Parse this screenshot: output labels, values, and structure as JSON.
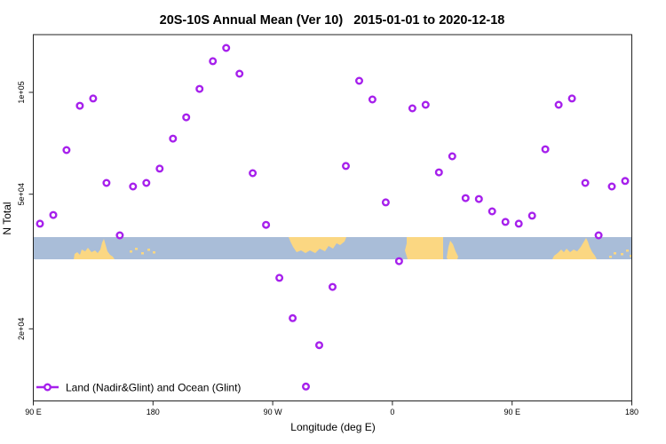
{
  "title": "20S-10S Annual Mean (Ver 10)   2015-01-01 to 2020-12-18",
  "chart_data": {
    "type": "scatter",
    "title": "20S-10S Annual Mean (Ver 10)   2015-01-01 to 2020-12-18",
    "xlabel": "Longitude (deg E)",
    "ylabel": "N Total",
    "y_scale": "log",
    "ylim": [
      11000,
      150000
    ],
    "x_axis": {
      "range_deg_continuous": [
        90,
        540
      ],
      "ticks": [
        {
          "lon": 90,
          "label": "90 E"
        },
        {
          "lon": 180,
          "label": "180"
        },
        {
          "lon": 270,
          "label": "90 W"
        },
        {
          "lon": 360,
          "label": "0"
        },
        {
          "lon": 450,
          "label": "90 E"
        },
        {
          "lon": 540,
          "label": "180"
        }
      ]
    },
    "y_axis": {
      "ticks": [
        {
          "value": 100000,
          "label": "1e+05"
        },
        {
          "value": 50000,
          "label": "5e+04"
        },
        {
          "value": 20000,
          "label": "2e+04"
        }
      ]
    },
    "legend": {
      "label": "Land (Nadir&Glint) and Ocean (Glint)"
    },
    "marker_color": "#A620EC",
    "series": [
      {
        "name": "Land (Nadir&Glint) and Ocean (Glint)",
        "points": [
          [
            95,
            40900
          ],
          [
            105,
            43400
          ],
          [
            115,
            67500
          ],
          [
            125,
            91300
          ],
          [
            135,
            95900
          ],
          [
            145,
            54000
          ],
          [
            155,
            37800
          ],
          [
            165,
            52700
          ],
          [
            175,
            54000
          ],
          [
            185,
            59500
          ],
          [
            195,
            73000
          ],
          [
            205,
            84400
          ],
          [
            215,
            102400
          ],
          [
            225,
            123600
          ],
          [
            235,
            135300
          ],
          [
            245,
            113500
          ],
          [
            255,
            57700
          ],
          [
            265,
            40600
          ],
          [
            275,
            28300
          ],
          [
            285,
            21500
          ],
          [
            295,
            13500
          ],
          [
            305,
            17900
          ],
          [
            315,
            26600
          ],
          [
            325,
            60600
          ],
          [
            335,
            108200
          ],
          [
            345,
            95300
          ],
          [
            355,
            47300
          ],
          [
            365,
            31700
          ],
          [
            375,
            89700
          ],
          [
            385,
            91900
          ],
          [
            395,
            58000
          ],
          [
            405,
            64700
          ],
          [
            415,
            48700
          ],
          [
            425,
            48400
          ],
          [
            435,
            44500
          ],
          [
            445,
            41400
          ],
          [
            455,
            40900
          ],
          [
            465,
            43200
          ],
          [
            475,
            67900
          ],
          [
            485,
            91900
          ],
          [
            495,
            95900
          ],
          [
            505,
            54000
          ],
          [
            515,
            37800
          ],
          [
            525,
            52700
          ],
          [
            535,
            54700
          ]
        ]
      }
    ],
    "map_band": {
      "lat_range": "20S to 10S",
      "ocean_color": "#A9BDD8",
      "land_color": "#FBD782"
    }
  }
}
